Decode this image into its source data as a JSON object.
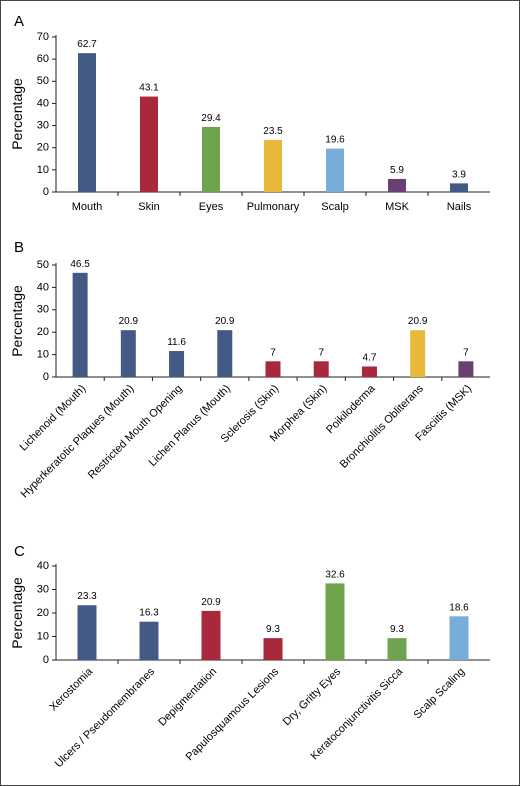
{
  "chart_data": [
    {
      "type": "bar",
      "panel": "A",
      "ylabel": "Percentage",
      "ylim": [
        0,
        70
      ],
      "yticks": [
        0,
        10,
        20,
        30,
        40,
        50,
        60,
        70
      ],
      "categories": [
        "Mouth",
        "Skin",
        "Eyes",
        "Pulmonary",
        "Scalp",
        "MSK",
        "Nails"
      ],
      "values": [
        62.7,
        43.1,
        29.4,
        23.5,
        19.6,
        5.9,
        3.9
      ],
      "labels": [
        "62.7",
        "43.1",
        "29.4",
        "23.5",
        "19.6",
        "5.9",
        "3.9"
      ],
      "colors": [
        "#435b84",
        "#a8283c",
        "#6fa34e",
        "#e9b83a",
        "#78acd9",
        "#6a3f73",
        "#435b84"
      ]
    },
    {
      "type": "bar",
      "panel": "B",
      "ylabel": "Percentage",
      "ylim": [
        0,
        50
      ],
      "yticks": [
        0,
        10,
        20,
        30,
        40,
        50
      ],
      "categories": [
        "Lichenoid (Mouth)",
        "Hyperkeratotic Plaques (Mouth)",
        "Restricted Mouth Opening",
        "Lichen Planus (Mouth)",
        "Sclerosis (Skin)",
        "Morphea (Skin)",
        "Poikiloderma",
        "Bronchiolitis Obliterans",
        "Fasciitis (MSK)"
      ],
      "values": [
        46.5,
        20.9,
        11.6,
        20.9,
        7,
        7,
        4.7,
        20.9,
        7
      ],
      "labels": [
        "46.5",
        "20.9",
        "11.6",
        "20.9",
        "7",
        "7",
        "4.7",
        "20.9",
        "7"
      ],
      "colors": [
        "#435b84",
        "#435b84",
        "#435b84",
        "#435b84",
        "#a8283c",
        "#a8283c",
        "#a8283c",
        "#e9b83a",
        "#6a3f73"
      ]
    },
    {
      "type": "bar",
      "panel": "C",
      "ylabel": "Percentage",
      "ylim": [
        0,
        40
      ],
      "yticks": [
        0,
        10,
        20,
        30,
        40
      ],
      "categories": [
        "Xerostomia",
        "Ulcers / Pseudomembranes",
        "Depigmentation",
        "Papulosquamous Lesions",
        "Dry, Gritty Eyes",
        "Keratoconjunctivitis Sicca",
        "Scalp Scaling"
      ],
      "values": [
        23.3,
        16.3,
        20.9,
        9.3,
        32.6,
        9.3,
        18.6
      ],
      "labels": [
        "23.3",
        "16.3",
        "20.9",
        "9.3",
        "32.6",
        "9.3",
        "18.6"
      ],
      "colors": [
        "#435b84",
        "#435b84",
        "#a8283c",
        "#a8283c",
        "#6fa34e",
        "#6fa34e",
        "#78acd9"
      ]
    }
  ]
}
